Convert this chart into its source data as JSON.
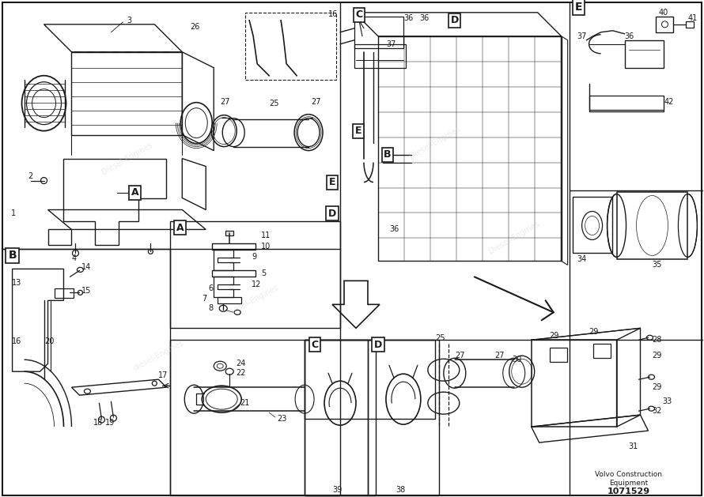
{
  "bg_color": "#ffffff",
  "line_color": "#1a1a1a",
  "text_color": "#1a1a1a",
  "wm_color": "#d0d0d0",
  "title_company": "Volvo Construction",
  "title_equipment": "Equipment",
  "drawing_number": "1071529",
  "font_size_num": 7,
  "font_size_box": 9,
  "font_size_title": 6.5,
  "font_size_drawnum": 8
}
